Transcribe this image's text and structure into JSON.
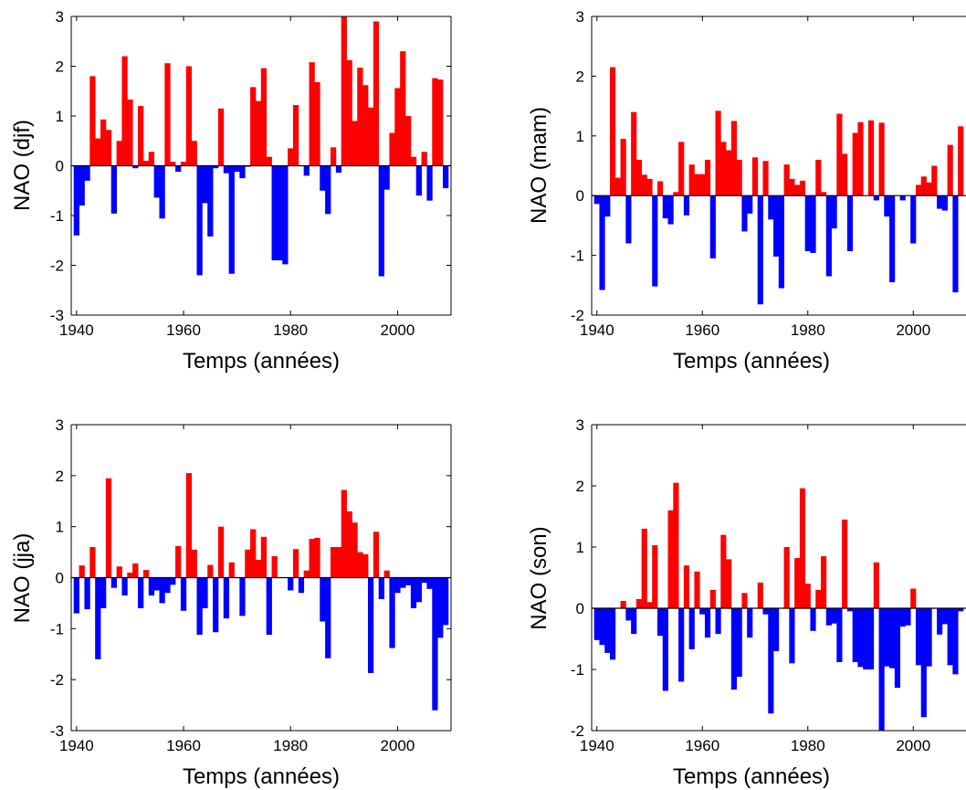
{
  "colors": {
    "positive": "#ff0000",
    "negative": "#0000ff",
    "axis": "#000000",
    "background": "#ffffff"
  },
  "chart_data": [
    {
      "type": "bar",
      "id": "djf",
      "xlabel": "Temps (années)",
      "ylabel": "NAO (djf)",
      "xlim": [
        1939,
        2010
      ],
      "ylim": [
        -3,
        3
      ],
      "xticks": [
        "1940",
        "1960",
        "1980",
        "2000"
      ],
      "yticks": [
        "-3",
        "-2",
        "-1",
        "0",
        "1",
        "2",
        "3"
      ],
      "grid": false,
      "x_start": 1940,
      "values": [
        -1.4,
        -0.8,
        -0.3,
        1.8,
        0.55,
        0.93,
        0.72,
        -0.96,
        0.5,
        2.2,
        1.33,
        -0.05,
        1.2,
        0.1,
        0.28,
        -0.64,
        -1.06,
        2.06,
        0.08,
        -0.12,
        0.08,
        2.0,
        0.5,
        -2.2,
        -0.75,
        -1.42,
        -0.05,
        1.15,
        -0.15,
        -2.17,
        -0.12,
        -0.25,
        -0.02,
        1.58,
        1.3,
        1.96,
        0.18,
        -1.9,
        -1.9,
        -1.98,
        0.35,
        1.22,
        0.0,
        -0.2,
        2.08,
        1.68,
        -0.5,
        -0.97,
        0.37,
        -0.14,
        3.0,
        2.12,
        0.9,
        1.97,
        1.62,
        1.17,
        2.9,
        -2.22,
        -0.48,
        0.66,
        1.56,
        2.3,
        1.0,
        0.18,
        -0.6,
        0.28,
        -0.7,
        1.76,
        1.73,
        -0.45
      ]
    },
    {
      "type": "bar",
      "id": "mam",
      "xlabel": "Temps (années)",
      "ylabel": "NAO (mam)",
      "xlim": [
        1939,
        2010
      ],
      "ylim": [
        -2,
        3
      ],
      "xticks": [
        "1940",
        "1960",
        "1980",
        "2000"
      ],
      "yticks": [
        "-2",
        "-1",
        "0",
        "1",
        "2",
        "3"
      ],
      "grid": false,
      "x_start": 1940,
      "values": [
        -0.14,
        -1.58,
        -0.35,
        2.15,
        0.3,
        0.95,
        -0.8,
        1.4,
        0.6,
        0.35,
        0.28,
        -1.52,
        0.24,
        -0.38,
        -0.48,
        0.06,
        0.9,
        -0.33,
        0.52,
        0.36,
        0.36,
        0.6,
        -1.05,
        1.42,
        0.9,
        0.76,
        1.25,
        0.6,
        -0.6,
        -0.3,
        0.64,
        -1.82,
        0.58,
        -0.4,
        -1.02,
        -1.55,
        0.52,
        0.28,
        0.18,
        0.25,
        -0.93,
        -0.96,
        0.6,
        0.06,
        -1.35,
        -0.55,
        1.37,
        0.7,
        -0.93,
        1.05,
        1.23,
        0.0,
        1.26,
        -0.08,
        1.22,
        -0.35,
        -1.45,
        0.0,
        -0.08,
        0.0,
        -0.8,
        0.18,
        0.32,
        0.22,
        0.5,
        -0.22,
        -0.25,
        0.85,
        -1.62,
        1.16
      ]
    },
    {
      "type": "bar",
      "id": "jja",
      "xlabel": "Temps (années)",
      "ylabel": "NAO (jja)",
      "xlim": [
        1939,
        2010
      ],
      "ylim": [
        -3,
        3
      ],
      "xticks": [
        "1940",
        "1960",
        "1980",
        "2000"
      ],
      "yticks": [
        "-3",
        "-2",
        "-1",
        "0",
        "1",
        "2",
        "3"
      ],
      "grid": false,
      "x_start": 1940,
      "values": [
        -0.7,
        0.24,
        -0.62,
        0.6,
        -1.6,
        -0.6,
        1.95,
        -0.2,
        0.22,
        -0.35,
        0.1,
        0.28,
        -0.6,
        0.15,
        -0.35,
        -0.25,
        -0.5,
        -0.3,
        -0.14,
        0.62,
        -0.65,
        2.05,
        0.55,
        -1.12,
        -0.6,
        0.25,
        -1.07,
        1.0,
        -0.8,
        0.3,
        0.0,
        -0.75,
        0.55,
        0.95,
        0.35,
        0.8,
        -1.12,
        0.42,
        0.0,
        0.0,
        -0.25,
        0.56,
        -0.3,
        0.14,
        0.76,
        0.78,
        -0.86,
        -1.58,
        0.6,
        0.6,
        1.72,
        1.3,
        1.08,
        0.5,
        0.46,
        -1.87,
        0.9,
        -0.42,
        0.14,
        -1.38,
        -0.3,
        -0.2,
        -0.15,
        -0.6,
        -0.48,
        -0.1,
        -0.22,
        -2.6,
        -1.18,
        -0.93
      ]
    },
    {
      "type": "bar",
      "id": "son",
      "xlabel": "Temps (années)",
      "ylabel": "NAO (son)",
      "xlim": [
        1939,
        2010
      ],
      "ylim": [
        -2,
        3
      ],
      "xticks": [
        "1940",
        "1960",
        "1980",
        "2000"
      ],
      "yticks": [
        "-2",
        "-1",
        "0",
        "1",
        "2",
        "3"
      ],
      "grid": false,
      "x_start": 1940,
      "values": [
        -0.52,
        -0.6,
        -0.73,
        -0.84,
        0.0,
        0.12,
        -0.2,
        -0.42,
        0.15,
        1.3,
        0.1,
        1.03,
        -0.45,
        -1.35,
        1.6,
        2.05,
        -1.2,
        0.7,
        -0.67,
        0.6,
        -0.1,
        -0.48,
        0.3,
        -0.42,
        1.2,
        0.8,
        -1.33,
        -1.12,
        0.25,
        -0.48,
        0.0,
        0.42,
        -0.1,
        -1.72,
        -0.7,
        0.0,
        1.0,
        -0.9,
        0.82,
        1.96,
        0.4,
        -0.37,
        0.3,
        0.85,
        -0.28,
        -0.25,
        -0.88,
        1.45,
        -0.05,
        -0.88,
        -0.96,
        -1.0,
        -1.0,
        0.75,
        -2.0,
        -0.95,
        -0.98,
        -1.3,
        -0.3,
        -0.28,
        0.32,
        -0.93,
        -1.78,
        -0.95,
        0.0,
        -0.43,
        -0.26,
        -0.93,
        -1.08,
        -0.05
      ]
    }
  ]
}
